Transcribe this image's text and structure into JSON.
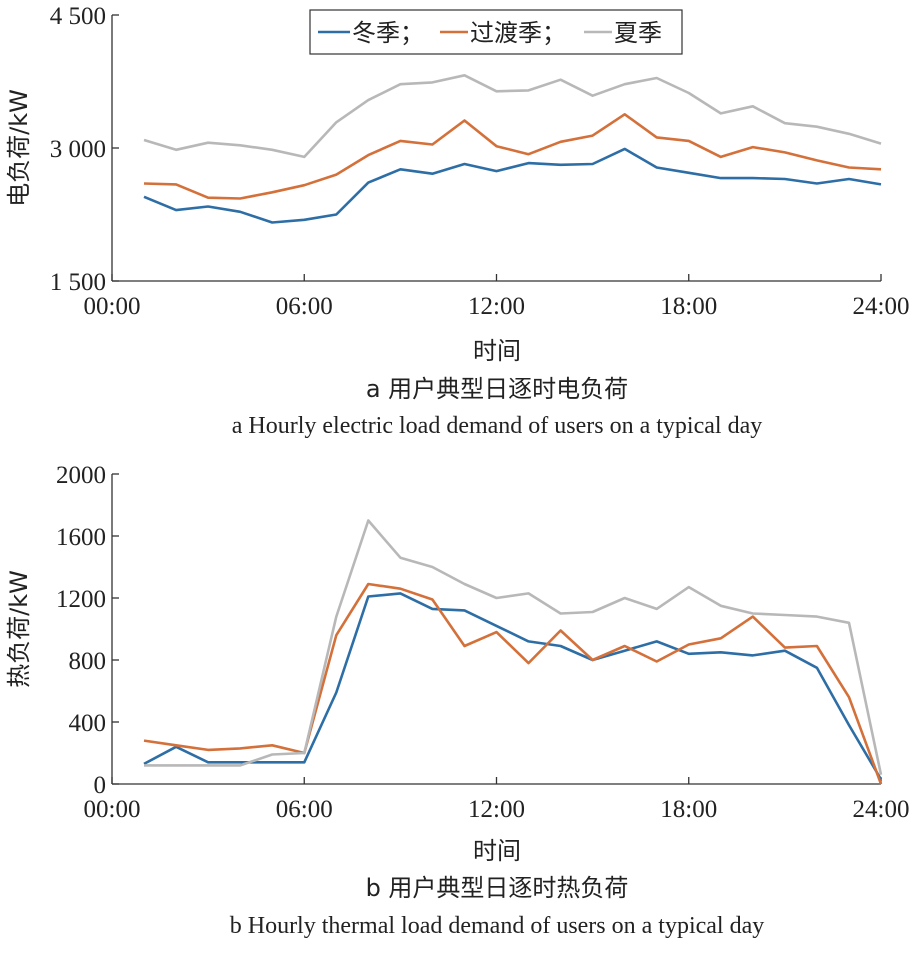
{
  "chart_data": [
    {
      "type": "line",
      "ylabel": "电负荷/kW",
      "xlabel": "时间",
      "caption_cn": "a 用户典型日逐时电负荷",
      "caption_en": "a Hourly electric load demand of users on a typical day",
      "ylim": [
        1500,
        4500
      ],
      "y_ticks": [
        "4 500",
        "3 000",
        "1 500"
      ],
      "y_tick_values": [
        4500,
        3000,
        1500
      ],
      "xlim": [
        0,
        24
      ],
      "x_tick_labels": [
        "00:00",
        "06:00",
        "12:00",
        "18:00",
        "24:00"
      ],
      "x_tick_values": [
        0,
        6,
        12,
        18,
        24
      ],
      "x": [
        1,
        2,
        3,
        4,
        5,
        6,
        7,
        8,
        9,
        10,
        11,
        12,
        13,
        14,
        15,
        16,
        17,
        18,
        19,
        20,
        21,
        22,
        23,
        24
      ],
      "legend": {
        "placement": "top-center",
        "separator": "；"
      },
      "grid": false,
      "series": [
        {
          "name": "冬季",
          "color": "#2e6ea6",
          "values": [
            2450,
            2300,
            2340,
            2280,
            2160,
            2190,
            2250,
            2610,
            2760,
            2710,
            2820,
            2740,
            2830,
            2810,
            2820,
            2990,
            2780,
            2720,
            2660,
            2660,
            2650,
            2600,
            2650,
            2590
          ]
        },
        {
          "name": "过渡季",
          "color": "#d4703a",
          "values": [
            2600,
            2590,
            2440,
            2430,
            2500,
            2580,
            2700,
            2920,
            3080,
            3040,
            3310,
            3020,
            2930,
            3070,
            3140,
            3380,
            3120,
            3080,
            2900,
            3010,
            2950,
            2860,
            2780,
            2760
          ]
        },
        {
          "name": "夏季",
          "color": "#b8b8b8",
          "values": [
            3090,
            2980,
            3060,
            3030,
            2980,
            2900,
            3290,
            3540,
            3720,
            3740,
            3820,
            3640,
            3650,
            3770,
            3590,
            3720,
            3790,
            3620,
            3390,
            3470,
            3280,
            3240,
            3160,
            3050
          ]
        }
      ]
    },
    {
      "type": "line",
      "ylabel": "热负荷/kW",
      "xlabel": "时间",
      "caption_cn": "b 用户典型日逐时热负荷",
      "caption_en": "b Hourly thermal load demand of users on a typical day",
      "ylim": [
        0,
        2000
      ],
      "y_ticks": [
        "2000",
        "1600",
        "1200",
        "800",
        "400",
        "0"
      ],
      "y_tick_values": [
        2000,
        1600,
        1200,
        800,
        400,
        0
      ],
      "xlim": [
        0,
        24
      ],
      "x_tick_labels": [
        "00:00",
        "06:00",
        "12:00",
        "18:00",
        "24:00"
      ],
      "x_tick_values": [
        0,
        6,
        12,
        18,
        24
      ],
      "x": [
        1,
        2,
        3,
        4,
        5,
        6,
        7,
        8,
        9,
        10,
        11,
        12,
        13,
        14,
        15,
        16,
        17,
        18,
        19,
        20,
        21,
        22,
        23,
        24
      ],
      "grid": false,
      "series": [
        {
          "color": "#2e6ea6",
          "values": [
            130,
            240,
            140,
            140,
            140,
            140,
            590,
            1210,
            1230,
            1130,
            1120,
            1020,
            920,
            890,
            800,
            860,
            920,
            840,
            850,
            830,
            860,
            750,
            380,
            30
          ]
        },
        {
          "color": "#d4703a",
          "values": [
            280,
            250,
            220,
            230,
            250,
            200,
            960,
            1290,
            1260,
            1190,
            890,
            980,
            780,
            990,
            800,
            890,
            790,
            900,
            940,
            1080,
            880,
            890,
            560,
            0
          ]
        },
        {
          "color": "#b8b8b8",
          "values": [
            120,
            120,
            120,
            120,
            190,
            200,
            1080,
            1700,
            1460,
            1400,
            1290,
            1200,
            1230,
            1100,
            1110,
            1200,
            1130,
            1270,
            1150,
            1100,
            1090,
            1080,
            1040,
            60
          ]
        }
      ]
    }
  ]
}
